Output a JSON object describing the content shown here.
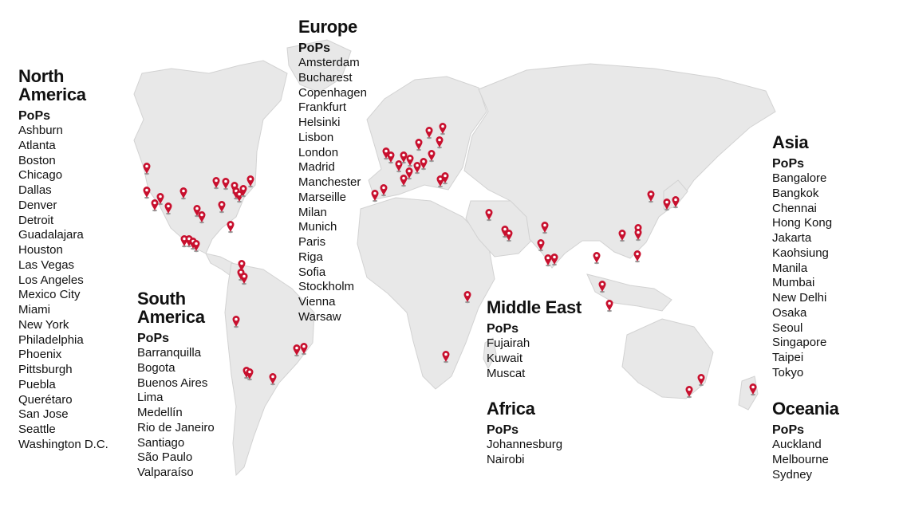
{
  "colors": {
    "pin": "#c8102e",
    "land": "#e6e6e6",
    "land_stroke": "#cfcfcf",
    "text": "#111111"
  },
  "regions": [
    {
      "id": "north-america",
      "title_lines": [
        "North",
        "America"
      ],
      "subtitle": "PoPs",
      "cities": [
        "Ashburn",
        "Atlanta",
        "Boston",
        "Chicago",
        "Dallas",
        "Denver",
        "Detroit",
        "Guadalajara",
        "Houston",
        "Las Vegas",
        "Los Angeles",
        "Mexico City",
        "Miami",
        "New York",
        "Philadelphia",
        "Phoenix",
        "Pittsburgh",
        "Puebla",
        "Querétaro",
        "San Jose",
        "Seattle",
        "Washington D.C."
      ]
    },
    {
      "id": "south-america",
      "title_lines": [
        "South",
        "America"
      ],
      "subtitle": "PoPs",
      "cities": [
        "Barranquilla",
        "Bogota",
        "Buenos Aires",
        "Lima",
        "Medellín",
        "Rio de Janeiro",
        "Santiago",
        "São Paulo",
        "Valparaíso"
      ]
    },
    {
      "id": "europe",
      "title_lines": [
        "Europe"
      ],
      "subtitle": "PoPs",
      "cities": [
        "Amsterdam",
        "Bucharest",
        "Copenhagen",
        "Frankfurt",
        "Helsinki",
        "Lisbon",
        "London",
        "Madrid",
        "Manchester",
        "Marseille",
        "Milan",
        "Munich",
        "Paris",
        "Riga",
        "Sofia",
        "Stockholm",
        "Vienna",
        "Warsaw"
      ]
    },
    {
      "id": "middle-east",
      "title_lines": [
        "Middle East"
      ],
      "subtitle": "PoPs",
      "cities": [
        "Fujairah",
        "Kuwait",
        "Muscat"
      ]
    },
    {
      "id": "africa",
      "title_lines": [
        "Africa"
      ],
      "subtitle": "PoPs",
      "cities": [
        "Johannesburg",
        "Nairobi"
      ]
    },
    {
      "id": "asia",
      "title_lines": [
        "Asia"
      ],
      "subtitle": "PoPs",
      "cities": [
        "Bangalore",
        "Bangkok",
        "Chennai",
        "Hong Kong",
        "Jakarta",
        "Kaohsiung",
        "Manila",
        "Mumbai",
        "New Delhi",
        "Osaka",
        "Seoul",
        "Singapore",
        "Taipei",
        "Tokyo"
      ]
    },
    {
      "id": "oceania",
      "title_lines": [
        "Oceania"
      ],
      "subtitle": "PoPs",
      "cities": [
        "Auckland",
        "Melbourne",
        "Sydney"
      ]
    }
  ]
}
